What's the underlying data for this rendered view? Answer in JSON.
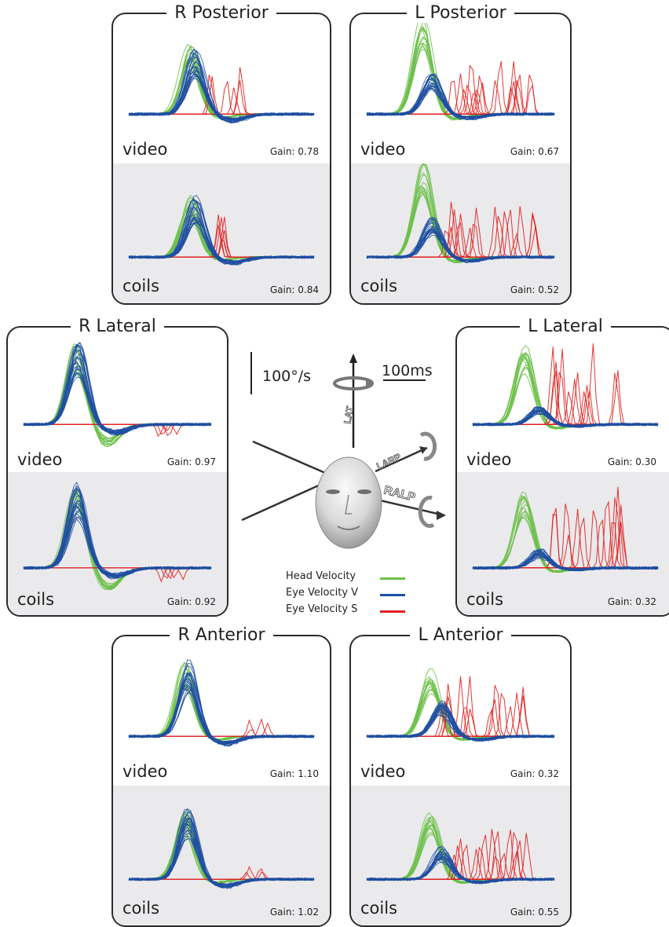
{
  "panels": [
    {
      "id": "r-posterior",
      "title": "R Posterior",
      "top_label": "video",
      "top_gain": "Gain: 0.78",
      "bot_label": "coils",
      "bot_gain": "Gain: 0.84"
    },
    {
      "id": "l-posterior",
      "title": "L Posterior",
      "top_label": "video",
      "top_gain": "Gain: 0.67",
      "bot_label": "coils",
      "bot_gain": "Gain: 0.52"
    },
    {
      "id": "r-lateral",
      "title": "R Lateral",
      "top_label": "video",
      "top_gain": "Gain: 0.97",
      "bot_label": "coils",
      "bot_gain": "Gain: 0.92"
    },
    {
      "id": "l-lateral",
      "title": "L Lateral",
      "top_label": "video",
      "top_gain": "Gain: 0.30",
      "bot_label": "coils",
      "bot_gain": "Gain: 0.32"
    },
    {
      "id": "r-anterior",
      "title": "R Anterior",
      "top_label": "video",
      "top_gain": "Gain: 1.10",
      "bot_label": "coils",
      "bot_gain": "Gain: 1.02"
    },
    {
      "id": "l-anterior",
      "title": "L Anterior",
      "top_label": "video",
      "top_gain": "Gain: 0.32",
      "bot_label": "coils",
      "bot_gain": "Gain: 0.55"
    }
  ],
  "scale": {
    "velocity": "100°/s",
    "time": "100ms"
  },
  "axes": {
    "lat": "LAT",
    "larp": "LARP",
    "ralp": "RALP"
  },
  "legend": [
    {
      "label": "Head Velocity",
      "color": "#6cc04a"
    },
    {
      "label": "Eye Velocity V",
      "color": "#1f4fa0"
    },
    {
      "label": "Eye Velocity S",
      "color": "#e02020"
    }
  ],
  "colors": {
    "head": "#6cc04a",
    "eye_v": "#1f4fa0",
    "eye_s": "#e02020",
    "panel_bg_bottom": "#eaeaec"
  }
}
